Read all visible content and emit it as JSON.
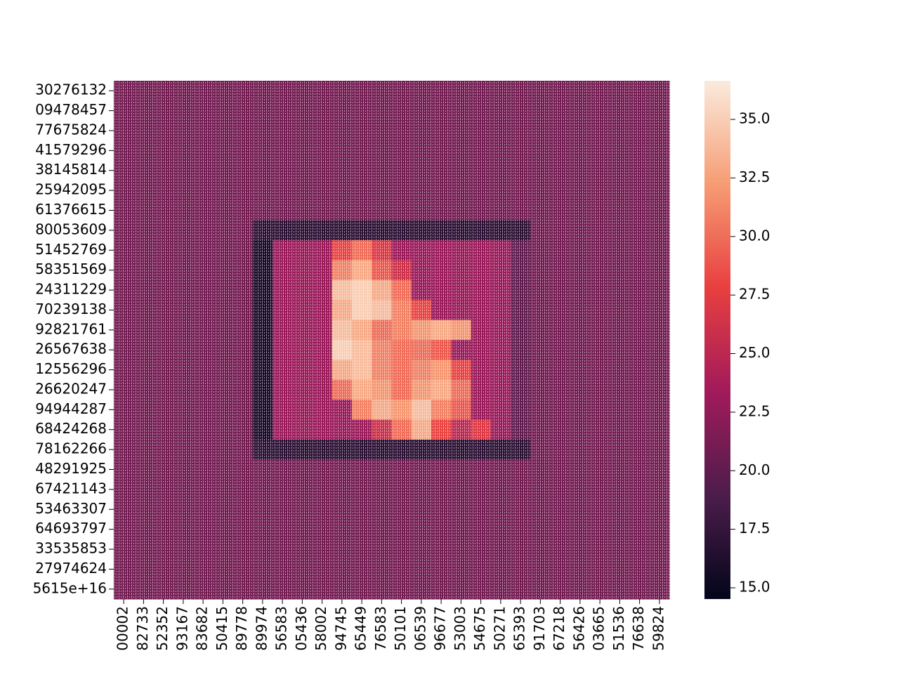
{
  "chart_data": {
    "type": "heatmap",
    "rows": [
      "30276132",
      "09478457",
      "77675824",
      "41579296",
      "38145814",
      "25942095",
      "61376615",
      "80053609",
      "51452769",
      "58351569",
      "24311229",
      "70239138",
      "92821761",
      "26567638",
      "12556296",
      "26620247",
      "94944287",
      "68424268",
      "78162266",
      "48291925",
      "67421143",
      "53463307",
      "64693797",
      "33535853",
      "27974624",
      "5615e+16"
    ],
    "columns": [
      "00002",
      "82733",
      "52352",
      "93167",
      "83682",
      "50415",
      "89778",
      "89974",
      "56583",
      "05436",
      "58002",
      "94745",
      "65449",
      "76583",
      "50101",
      "06539",
      "96677",
      "53003",
      "54675",
      "50271",
      "65393",
      "91703",
      "67218",
      "56426",
      "03665",
      "51536",
      "76638",
      "59824"
    ],
    "values": [
      [
        21,
        21,
        21,
        21,
        21,
        21,
        21,
        21,
        21,
        21,
        21,
        21,
        21,
        21,
        21,
        21,
        21,
        21,
        21,
        21,
        21,
        21,
        21,
        21,
        21,
        21,
        21,
        21
      ],
      [
        21,
        21,
        21,
        21,
        21,
        21,
        21,
        21,
        21,
        21,
        21,
        21,
        21,
        21,
        21,
        21,
        21,
        21,
        21,
        21,
        21,
        21,
        21,
        21,
        21,
        21,
        21,
        21
      ],
      [
        21,
        21,
        21,
        21,
        21,
        21,
        21,
        21,
        21,
        21,
        21,
        21,
        21,
        21,
        21,
        21,
        21,
        21,
        21,
        21,
        21,
        21,
        21,
        21,
        21,
        21,
        21,
        21
      ],
      [
        21,
        21,
        21,
        21,
        21,
        21,
        21,
        21,
        21,
        21,
        21,
        21,
        21,
        21,
        21,
        21,
        21,
        21,
        21,
        21,
        21,
        21,
        21,
        21,
        21,
        21,
        21,
        21
      ],
      [
        21,
        21,
        21,
        21,
        21,
        21,
        21,
        21,
        21,
        21,
        21,
        21,
        21,
        21,
        21,
        21,
        21,
        21,
        21,
        21,
        21,
        21,
        21,
        21,
        21,
        21,
        21,
        21
      ],
      [
        21,
        21,
        21,
        21,
        21,
        21,
        21,
        21,
        21,
        21,
        21,
        21,
        21,
        21,
        21,
        21,
        21,
        21,
        21,
        21,
        21,
        21,
        21,
        21,
        21,
        21,
        21,
        21
      ],
      [
        21,
        21,
        21,
        21,
        21,
        21,
        21,
        21,
        21,
        21,
        21,
        21,
        21,
        21,
        21,
        21,
        21,
        21,
        21,
        21,
        21,
        21,
        21,
        21,
        21,
        21,
        21,
        21
      ],
      [
        21,
        21,
        21,
        21,
        21,
        21,
        21,
        17,
        17,
        17,
        17,
        17,
        17,
        17,
        17,
        17,
        17,
        17,
        17,
        17,
        17,
        21,
        21,
        21,
        21,
        21,
        21,
        21
      ],
      [
        21,
        21,
        21,
        21,
        21,
        21,
        21,
        16,
        23,
        23,
        23,
        28,
        30,
        27,
        23,
        23,
        23,
        23,
        23,
        23,
        20,
        21,
        21,
        21,
        21,
        21,
        21,
        21
      ],
      [
        21,
        21,
        21,
        21,
        21,
        21,
        21,
        16,
        23,
        23,
        23,
        31,
        33,
        29,
        26,
        23,
        23,
        23,
        23,
        23,
        20,
        21,
        21,
        21,
        21,
        21,
        21,
        21
      ],
      [
        21,
        21,
        21,
        21,
        21,
        21,
        21,
        16,
        23,
        23,
        23,
        34,
        35,
        33,
        30,
        23,
        23,
        23,
        23,
        23,
        20,
        21,
        21,
        21,
        21,
        21,
        21,
        21
      ],
      [
        21,
        21,
        21,
        21,
        21,
        21,
        21,
        16,
        23,
        23,
        23,
        33,
        35,
        34,
        31,
        28,
        23,
        23,
        23,
        23,
        20,
        21,
        21,
        21,
        21,
        21,
        21,
        21
      ],
      [
        21,
        21,
        21,
        21,
        21,
        21,
        21,
        16,
        23,
        23,
        23,
        34,
        33,
        30,
        31,
        32,
        33,
        32,
        23,
        23,
        20,
        21,
        21,
        21,
        21,
        21,
        21,
        21
      ],
      [
        21,
        21,
        21,
        21,
        21,
        21,
        21,
        16,
        23,
        23,
        23,
        35,
        34,
        31,
        30,
        30,
        29,
        23,
        23,
        23,
        20,
        21,
        21,
        21,
        21,
        21,
        21,
        21
      ],
      [
        21,
        21,
        21,
        21,
        21,
        21,
        21,
        16,
        23,
        23,
        23,
        33,
        34,
        31,
        30,
        31,
        32,
        28,
        23,
        23,
        20,
        21,
        21,
        21,
        21,
        21,
        21,
        21
      ],
      [
        21,
        21,
        21,
        21,
        21,
        21,
        21,
        16,
        23,
        23,
        23,
        30,
        33,
        32,
        30,
        32,
        33,
        30,
        23,
        23,
        20,
        21,
        21,
        21,
        21,
        21,
        21,
        21
      ],
      [
        21,
        21,
        21,
        21,
        21,
        21,
        21,
        16,
        23,
        23,
        23,
        23,
        31,
        33,
        32,
        34,
        31,
        29,
        23,
        23,
        20,
        21,
        21,
        21,
        21,
        21,
        21,
        21
      ],
      [
        21,
        21,
        21,
        21,
        21,
        21,
        21,
        16,
        23,
        23,
        23,
        23,
        23,
        26,
        30,
        33,
        28,
        25,
        27,
        23,
        20,
        21,
        21,
        21,
        21,
        21,
        21,
        21
      ],
      [
        21,
        21,
        21,
        21,
        21,
        21,
        21,
        17,
        17,
        17,
        17,
        17,
        17,
        17,
        17,
        17,
        17,
        17,
        17,
        17,
        17,
        21,
        21,
        21,
        21,
        21,
        21,
        21
      ],
      [
        21,
        21,
        21,
        21,
        21,
        21,
        21,
        21,
        21,
        21,
        21,
        21,
        21,
        21,
        21,
        21,
        21,
        21,
        21,
        21,
        21,
        21,
        21,
        21,
        21,
        21,
        21,
        21
      ],
      [
        21,
        21,
        21,
        21,
        21,
        21,
        21,
        21,
        21,
        21,
        21,
        21,
        21,
        21,
        21,
        21,
        21,
        21,
        21,
        21,
        21,
        21,
        21,
        21,
        21,
        21,
        21,
        21
      ],
      [
        21,
        21,
        21,
        21,
        21,
        21,
        21,
        21,
        21,
        21,
        21,
        21,
        21,
        21,
        21,
        21,
        21,
        21,
        21,
        21,
        21,
        21,
        21,
        21,
        21,
        21,
        21,
        21
      ],
      [
        21,
        21,
        21,
        21,
        21,
        21,
        21,
        21,
        21,
        21,
        21,
        21,
        21,
        21,
        21,
        21,
        21,
        21,
        21,
        21,
        21,
        21,
        21,
        21,
        21,
        21,
        21,
        21
      ],
      [
        21,
        21,
        21,
        21,
        21,
        21,
        21,
        21,
        21,
        21,
        21,
        21,
        21,
        21,
        21,
        21,
        21,
        21,
        21,
        21,
        21,
        21,
        21,
        21,
        21,
        21,
        21,
        21
      ],
      [
        21,
        21,
        21,
        21,
        21,
        21,
        21,
        21,
        21,
        21,
        21,
        21,
        21,
        21,
        21,
        21,
        21,
        21,
        21,
        21,
        21,
        21,
        21,
        21,
        21,
        21,
        21,
        21
      ],
      [
        21,
        21,
        21,
        21,
        21,
        21,
        21,
        21,
        21,
        21,
        21,
        21,
        21,
        21,
        21,
        21,
        21,
        21,
        21,
        21,
        21,
        21,
        21,
        21,
        21,
        21,
        21,
        21
      ]
    ],
    "colormap": [
      "#03051a",
      "#4c1d4b",
      "#a11a5b",
      "#e83f3f",
      "#f69c73",
      "#faebdd"
    ],
    "clim": [
      14.52,
      36.65
    ],
    "cticks": [
      {
        "value": 15,
        "label": "15.0"
      },
      {
        "value": 17.5,
        "label": "17.5"
      },
      {
        "value": 20,
        "label": "20.0"
      },
      {
        "value": 22.5,
        "label": "22.5"
      },
      {
        "value": 25,
        "label": "25.0"
      },
      {
        "value": 27.5,
        "label": "27.5"
      },
      {
        "value": 30,
        "label": "30.0"
      },
      {
        "value": 32.5,
        "label": "32.5"
      },
      {
        "value": 35,
        "label": "35.0"
      }
    ]
  }
}
